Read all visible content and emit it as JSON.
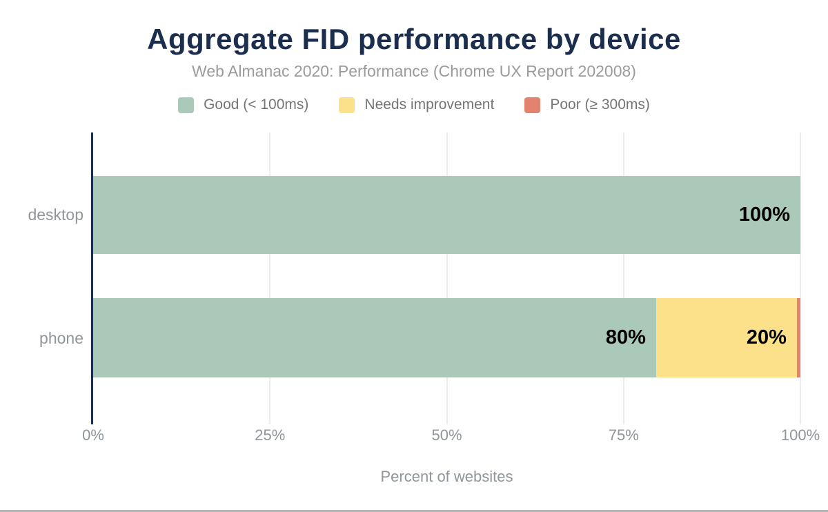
{
  "chart_data": {
    "type": "bar",
    "orientation": "horizontal",
    "stacked": true,
    "title": "Aggregate FID performance by device",
    "subtitle": "Web Almanac 2020: Performance (Chrome UX Report 202008)",
    "xlabel": "Percent of websites",
    "categories": [
      "desktop",
      "phone"
    ],
    "series": [
      {
        "name": "Good (< 100ms)",
        "color": "#aac9b8",
        "values": [
          100,
          80
        ],
        "labels": [
          "100%",
          "80%"
        ]
      },
      {
        "name": "Needs improvement",
        "color": "#fce08a",
        "values": [
          0,
          20
        ],
        "labels": [
          "",
          "20%"
        ]
      },
      {
        "name": "Poor (≥ 300ms)",
        "color": "#e2826f",
        "values": [
          0,
          0.5
        ],
        "labels": [
          "",
          ""
        ]
      }
    ],
    "x_ticks": [
      "0%",
      "25%",
      "50%",
      "75%",
      "100%"
    ],
    "xlim": [
      0,
      100
    ],
    "grid": true,
    "legend_position": "top",
    "colors": {
      "title": "#1c2e4e",
      "axis_line": "#1b2d4f",
      "gridline": "#ececec",
      "tick_text": "#8e959c",
      "legend_text": "#757575"
    }
  }
}
